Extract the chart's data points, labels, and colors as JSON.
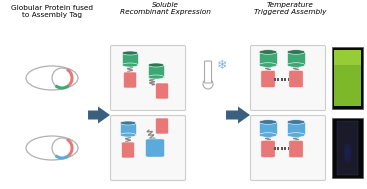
{
  "title1": "Globular Protein fused\nto Assembly Tag",
  "title2": "Soluble\nRecombinant Expression",
  "title3": "Temperature\nTriggered Assembly",
  "bg_color": "#ffffff",
  "ellipse_color": "#b0b0b0",
  "tag_green": "#3da876",
  "tag_blue": "#5aabdc",
  "tag_red": "#e87878",
  "cylinder_green": "#3da876",
  "cylinder_blue": "#5aabdc",
  "rect_red": "#e87878",
  "arrow_color": "#3a6080",
  "box_color": "#cccccc",
  "squiggle_color": "#888888"
}
